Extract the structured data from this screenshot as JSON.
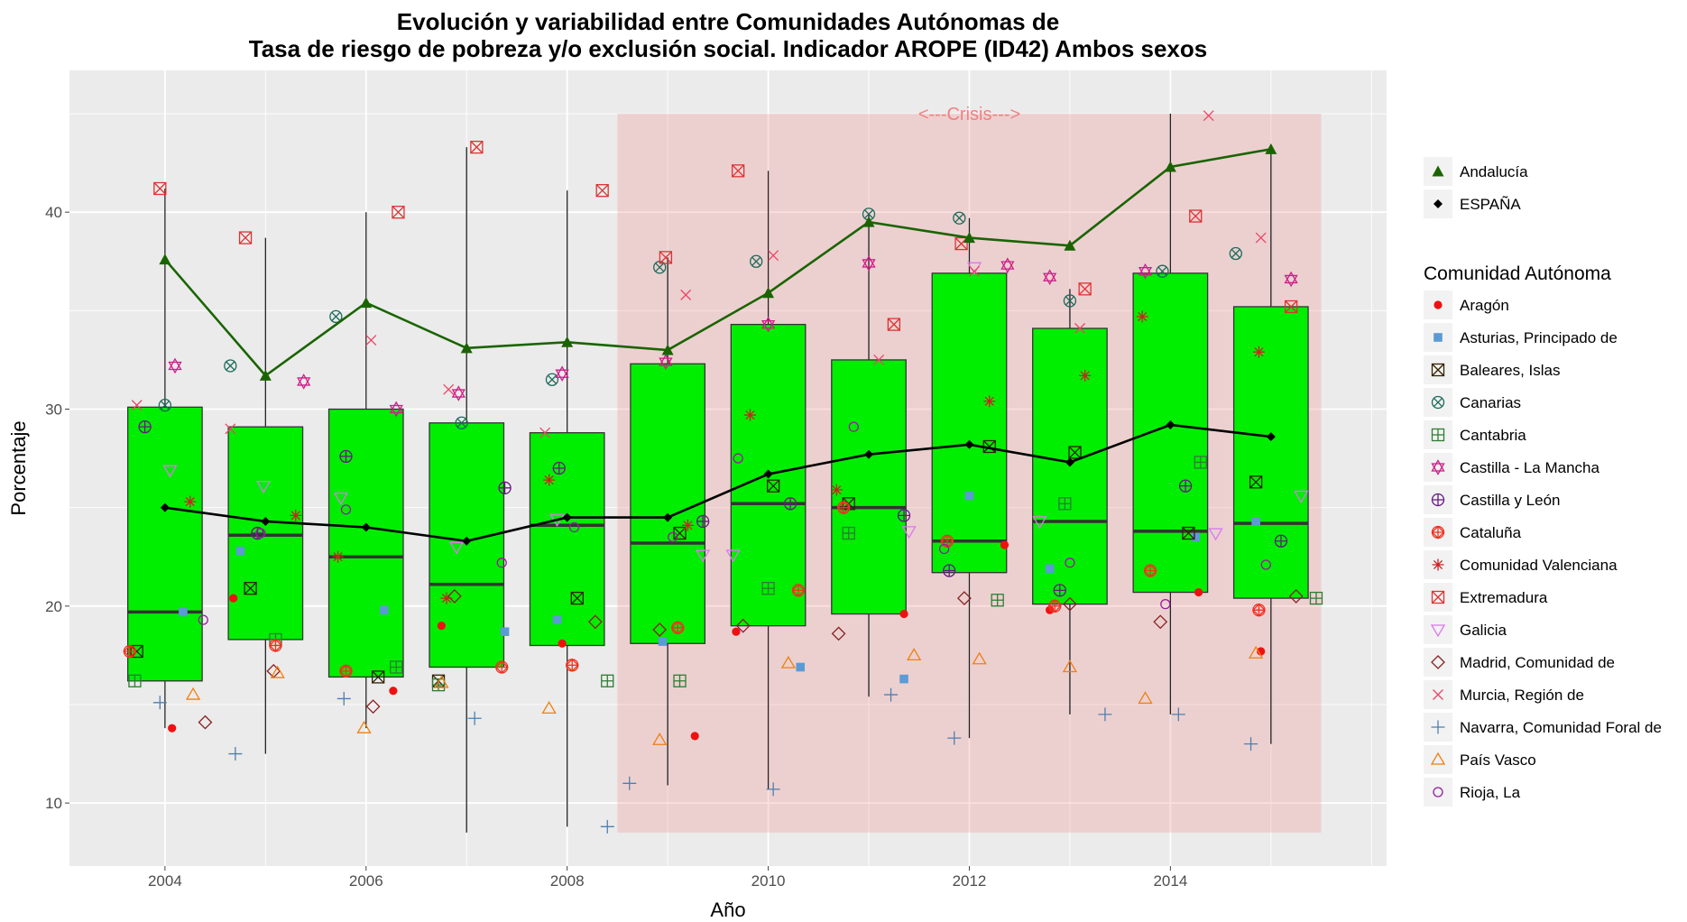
{
  "chart_data": {
    "type": "boxplot",
    "title_line1": "Evolución y variabilidad entre Comunidades Autónomas de",
    "title_line2": "Tasa de riesgo de pobreza y/o exclusión social. Indicador AROPE (ID42) Ambos sexos",
    "xlabel": "Año",
    "ylabel": "Porcentaje",
    "xlim": [
      2003.05,
      2016.15
    ],
    "ylim": [
      6.8,
      47.2
    ],
    "x_ticks": [
      2004,
      2006,
      2008,
      2010,
      2012,
      2014
    ],
    "y_ticks": [
      10,
      20,
      30,
      40
    ],
    "grid": true,
    "legend_position": "right",
    "crisis": {
      "label": "<---Crisis--->",
      "x_start": 2008.5,
      "x_end": 2015.5,
      "y_bottom": 8.5,
      "y_top": 45,
      "color": "#f08080"
    },
    "box_color": "#00ee00",
    "boxes": [
      {
        "year": 2004,
        "low": 13.8,
        "q1": 16.2,
        "median": 19.7,
        "q3": 30.1,
        "high": 41.2
      },
      {
        "year": 2005,
        "low": 12.5,
        "q1": 18.3,
        "median": 23.6,
        "q3": 29.1,
        "high": 38.7
      },
      {
        "year": 2006,
        "low": 13.8,
        "q1": 16.4,
        "median": 22.5,
        "q3": 30.0,
        "high": 40.0
      },
      {
        "year": 2007,
        "low": 8.5,
        "q1": 16.9,
        "median": 21.1,
        "q3": 29.3,
        "high": 43.3
      },
      {
        "year": 2008,
        "low": 8.8,
        "q1": 18.0,
        "median": 24.1,
        "q3": 28.8,
        "high": 41.1
      },
      {
        "year": 2009,
        "low": 10.9,
        "q1": 18.1,
        "median": 23.2,
        "q3": 32.3,
        "high": 37.7
      },
      {
        "year": 2010,
        "low": 10.7,
        "q1": 19.0,
        "median": 25.2,
        "q3": 34.3,
        "high": 42.1
      },
      {
        "year": 2011,
        "low": 15.4,
        "q1": 19.6,
        "median": 25.0,
        "q3": 32.5,
        "high": 39.9
      },
      {
        "year": 2012,
        "low": 13.3,
        "q1": 21.7,
        "median": 23.3,
        "q3": 36.9,
        "high": 39.7
      },
      {
        "year": 2013,
        "low": 14.5,
        "q1": 20.1,
        "median": 24.3,
        "q3": 34.1,
        "high": 36.1
      },
      {
        "year": 2014,
        "low": 14.5,
        "q1": 20.7,
        "median": 23.8,
        "q3": 36.9,
        "high": 45.0
      },
      {
        "year": 2015,
        "low": 13.0,
        "q1": 20.4,
        "median": 24.2,
        "q3": 35.2,
        "high": 43.2
      }
    ],
    "lines": [
      {
        "name": "Andalucía",
        "color": "#1a6400",
        "shape": "triangle",
        "x": [
          2004,
          2005,
          2006,
          2007,
          2008,
          2009,
          2010,
          2011,
          2012,
          2013,
          2014,
          2015
        ],
        "values": [
          37.6,
          31.7,
          35.4,
          33.1,
          33.4,
          33.0,
          35.9,
          39.5,
          38.7,
          38.3,
          42.3,
          43.2
        ]
      },
      {
        "name": "ESPAÑA",
        "color": "#000000",
        "shape": "diamond",
        "x": [
          2004,
          2005,
          2006,
          2007,
          2008,
          2009,
          2010,
          2011,
          2012,
          2013,
          2014,
          2015
        ],
        "values": [
          25.0,
          24.3,
          24.0,
          23.3,
          24.5,
          24.5,
          26.7,
          27.7,
          28.2,
          27.3,
          29.2,
          28.6
        ]
      }
    ],
    "legend_lines_title": "",
    "legend_points_title": "Comunidad Autónoma",
    "series": [
      {
        "name": "Aragón",
        "color": "#ee1111",
        "shape": "dot",
        "points": [
          [
            2004.07,
            13.8
          ],
          [
            2004.68,
            20.4
          ],
          [
            2006.27,
            15.7
          ],
          [
            2006.75,
            19.0
          ],
          [
            2007.95,
            18.1
          ],
          [
            2009.27,
            13.4
          ],
          [
            2009.68,
            18.7
          ],
          [
            2011.35,
            19.6
          ],
          [
            2012.35,
            23.1
          ],
          [
            2012.8,
            19.8
          ],
          [
            2014.28,
            20.7
          ],
          [
            2014.9,
            17.7
          ]
        ]
      },
      {
        "name": "Asturias, Principado de",
        "color": "#5a9bd5",
        "shape": "square",
        "points": [
          [
            2004.18,
            19.7
          ],
          [
            2004.75,
            22.8
          ],
          [
            2006.18,
            19.8
          ],
          [
            2007.38,
            18.7
          ],
          [
            2007.9,
            19.3
          ],
          [
            2008.95,
            18.2
          ],
          [
            2010.32,
            16.9
          ],
          [
            2011.35,
            16.3
          ],
          [
            2012.0,
            25.6
          ],
          [
            2012.8,
            21.9
          ],
          [
            2014.25,
            23.5
          ],
          [
            2014.85,
            24.3
          ]
        ]
      },
      {
        "name": "Baleares, Islas",
        "color": "#332200",
        "shape": "square-x",
        "points": [
          [
            2003.72,
            17.7
          ],
          [
            2004.85,
            20.9
          ],
          [
            2006.12,
            16.4
          ],
          [
            2006.72,
            16.2
          ],
          [
            2008.1,
            20.4
          ],
          [
            2009.12,
            23.7
          ],
          [
            2010.05,
            26.1
          ],
          [
            2010.8,
            25.2
          ],
          [
            2012.2,
            28.1
          ],
          [
            2013.05,
            27.8
          ],
          [
            2014.18,
            23.7
          ],
          [
            2014.85,
            26.3
          ]
        ]
      },
      {
        "name": "Canarias",
        "color": "#1a6b5a",
        "shape": "circle-x",
        "points": [
          [
            2004.0,
            30.2
          ],
          [
            2004.65,
            32.2
          ],
          [
            2005.7,
            34.7
          ],
          [
            2006.95,
            29.3
          ],
          [
            2007.85,
            31.5
          ],
          [
            2008.92,
            37.2
          ],
          [
            2009.88,
            37.5
          ],
          [
            2011.0,
            39.9
          ],
          [
            2011.9,
            39.7
          ],
          [
            2013.0,
            35.5
          ],
          [
            2013.92,
            37.0
          ],
          [
            2014.65,
            37.9
          ]
        ]
      },
      {
        "name": "Cantabria",
        "color": "#2e7d32",
        "shape": "square-plus",
        "points": [
          [
            2003.7,
            16.2
          ],
          [
            2005.1,
            18.3
          ],
          [
            2006.3,
            16.9
          ],
          [
            2006.72,
            16.0
          ],
          [
            2008.4,
            16.2
          ],
          [
            2009.12,
            16.2
          ],
          [
            2010.0,
            20.9
          ],
          [
            2010.8,
            23.7
          ],
          [
            2012.28,
            20.3
          ],
          [
            2012.95,
            25.2
          ],
          [
            2014.3,
            27.3
          ],
          [
            2015.45,
            20.4
          ]
        ]
      },
      {
        "name": "Castilla - La Mancha",
        "color": "#cc1f88",
        "shape": "star",
        "points": [
          [
            2004.1,
            32.2
          ],
          [
            2005.38,
            31.4
          ],
          [
            2006.3,
            30.0
          ],
          [
            2006.92,
            30.8
          ],
          [
            2007.95,
            31.8
          ],
          [
            2008.98,
            32.4
          ],
          [
            2010.0,
            34.3
          ],
          [
            2011.0,
            37.4
          ],
          [
            2012.38,
            37.3
          ],
          [
            2012.8,
            36.7
          ],
          [
            2013.75,
            37.0
          ],
          [
            2015.2,
            36.6
          ]
        ]
      },
      {
        "name": "Castilla y León",
        "color": "#661a80",
        "shape": "circle-plus",
        "points": [
          [
            2003.8,
            29.1
          ],
          [
            2004.92,
            23.7
          ],
          [
            2005.8,
            27.6
          ],
          [
            2007.38,
            26.0
          ],
          [
            2007.92,
            27.0
          ],
          [
            2009.35,
            24.3
          ],
          [
            2010.22,
            25.2
          ],
          [
            2011.35,
            24.6
          ],
          [
            2011.8,
            21.8
          ],
          [
            2012.9,
            20.8
          ],
          [
            2014.15,
            26.1
          ],
          [
            2015.1,
            23.3
          ]
        ]
      },
      {
        "name": "Cataluña",
        "color": "#ee3322",
        "shape": "circle-diamond",
        "points": [
          [
            2003.65,
            17.7
          ],
          [
            2005.1,
            18.0
          ],
          [
            2005.8,
            16.7
          ],
          [
            2007.35,
            16.9
          ],
          [
            2008.05,
            17.0
          ],
          [
            2009.1,
            18.9
          ],
          [
            2010.3,
            20.8
          ],
          [
            2010.75,
            25.0
          ],
          [
            2011.78,
            23.3
          ],
          [
            2012.85,
            20.0
          ],
          [
            2013.8,
            21.8
          ],
          [
            2014.88,
            19.8
          ]
        ]
      },
      {
        "name": "Comunidad Valenciana",
        "color": "#cc2222",
        "shape": "asterisk",
        "points": [
          [
            2004.25,
            25.3
          ],
          [
            2005.3,
            24.6
          ],
          [
            2005.72,
            22.5
          ],
          [
            2006.8,
            20.4
          ],
          [
            2007.82,
            26.4
          ],
          [
            2009.2,
            24.1
          ],
          [
            2009.82,
            29.7
          ],
          [
            2010.68,
            25.9
          ],
          [
            2012.2,
            30.4
          ],
          [
            2013.15,
            31.7
          ],
          [
            2013.72,
            34.7
          ],
          [
            2014.88,
            32.9
          ]
        ]
      },
      {
        "name": "Extremadura",
        "color": "#dd3333",
        "shape": "square-x",
        "points": [
          [
            2003.95,
            41.2
          ],
          [
            2004.8,
            38.7
          ],
          [
            2006.32,
            40.0
          ],
          [
            2007.1,
            43.3
          ],
          [
            2008.35,
            41.1
          ],
          [
            2008.98,
            37.7
          ],
          [
            2009.7,
            42.1
          ],
          [
            2011.25,
            34.3
          ],
          [
            2011.92,
            38.4
          ],
          [
            2013.15,
            36.1
          ],
          [
            2014.25,
            39.8
          ],
          [
            2015.2,
            35.2
          ]
        ]
      },
      {
        "name": "Galicia",
        "color": "#dd77ee",
        "shape": "triangle-down",
        "points": [
          [
            2004.05,
            26.9
          ],
          [
            2004.98,
            26.1
          ],
          [
            2005.75,
            25.5
          ],
          [
            2006.9,
            23.0
          ],
          [
            2007.9,
            24.4
          ],
          [
            2009.35,
            22.6
          ],
          [
            2009.65,
            22.6
          ],
          [
            2011.4,
            23.8
          ],
          [
            2012.05,
            37.2
          ],
          [
            2012.7,
            24.3
          ],
          [
            2014.45,
            23.7
          ],
          [
            2015.3,
            25.6
          ]
        ]
      },
      {
        "name": "Madrid, Comunidad de",
        "color": "#882222",
        "shape": "diamond-open",
        "points": [
          [
            2004.4,
            14.1
          ],
          [
            2005.08,
            16.7
          ],
          [
            2006.07,
            14.9
          ],
          [
            2006.88,
            20.5
          ],
          [
            2008.28,
            19.2
          ],
          [
            2008.92,
            18.8
          ],
          [
            2009.75,
            19.0
          ],
          [
            2010.7,
            18.6
          ],
          [
            2011.95,
            20.4
          ],
          [
            2013.0,
            20.1
          ],
          [
            2013.9,
            19.2
          ],
          [
            2015.25,
            20.5
          ]
        ]
      },
      {
        "name": "Murcia, Región de",
        "color": "#ee4466",
        "shape": "x",
        "points": [
          [
            2003.72,
            30.2
          ],
          [
            2004.65,
            29.0
          ],
          [
            2006.05,
            33.5
          ],
          [
            2006.82,
            31.0
          ],
          [
            2007.78,
            28.8
          ],
          [
            2009.18,
            35.8
          ],
          [
            2010.05,
            37.8
          ],
          [
            2011.1,
            32.5
          ],
          [
            2012.05,
            37.0
          ],
          [
            2013.1,
            34.1
          ],
          [
            2014.38,
            44.9
          ],
          [
            2014.9,
            38.7
          ]
        ]
      },
      {
        "name": "Navarra, Comunidad Foral de",
        "color": "#4f7fb0",
        "shape": "plus",
        "points": [
          [
            2003.95,
            15.1
          ],
          [
            2004.7,
            12.5
          ],
          [
            2005.78,
            15.3
          ],
          [
            2007.08,
            14.3
          ],
          [
            2008.4,
            8.8
          ],
          [
            2008.62,
            11.0
          ],
          [
            2010.05,
            10.7
          ],
          [
            2011.22,
            15.5
          ],
          [
            2011.85,
            13.3
          ],
          [
            2013.35,
            14.5
          ],
          [
            2014.08,
            14.5
          ],
          [
            2014.8,
            13.0
          ]
        ]
      },
      {
        "name": "País Vasco",
        "color": "#f07f10",
        "shape": "triangle-open",
        "points": [
          [
            2004.28,
            15.5
          ],
          [
            2005.12,
            16.6
          ],
          [
            2005.98,
            13.8
          ],
          [
            2006.75,
            16.1
          ],
          [
            2007.82,
            14.8
          ],
          [
            2008.92,
            13.2
          ],
          [
            2010.2,
            17.1
          ],
          [
            2011.45,
            17.5
          ],
          [
            2012.1,
            17.3
          ],
          [
            2013.0,
            16.9
          ],
          [
            2013.75,
            15.3
          ],
          [
            2014.85,
            17.6
          ]
        ]
      },
      {
        "name": "Rioja, La",
        "color": "#991aa0",
        "shape": "circle-open",
        "points": [
          [
            2004.38,
            19.3
          ],
          [
            2004.95,
            23.7
          ],
          [
            2005.8,
            24.9
          ],
          [
            2007.35,
            22.2
          ],
          [
            2008.07,
            24.0
          ],
          [
            2009.05,
            23.5
          ],
          [
            2009.7,
            27.5
          ],
          [
            2010.85,
            29.1
          ],
          [
            2011.75,
            22.9
          ],
          [
            2013.0,
            22.2
          ],
          [
            2013.95,
            20.1
          ],
          [
            2014.95,
            22.1
          ]
        ]
      }
    ]
  }
}
